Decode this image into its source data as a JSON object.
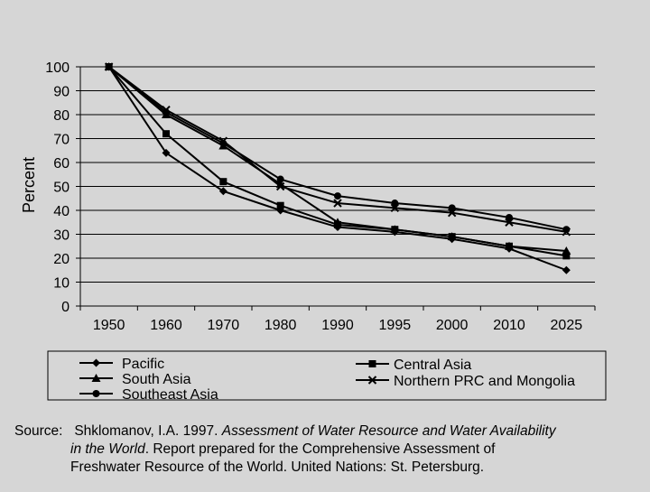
{
  "chart_data": {
    "type": "line",
    "ylabel": "Percent",
    "xlabel": "",
    "categories": [
      "1950",
      "1960",
      "1970",
      "1980",
      "1990",
      "1995",
      "2000",
      "2010",
      "2025"
    ],
    "ylim": [
      0,
      100
    ],
    "yticks": [
      0,
      10,
      20,
      30,
      40,
      50,
      60,
      70,
      80,
      90,
      100
    ],
    "grid": true,
    "legend_position": "bottom",
    "series": [
      {
        "name": "Pacific",
        "marker": "diamond",
        "values": [
          100,
          64,
          48,
          40,
          33,
          31,
          28,
          24,
          15
        ]
      },
      {
        "name": "South Asia",
        "marker": "triangle",
        "values": [
          100,
          80,
          67,
          51,
          35,
          32,
          29,
          25,
          23
        ]
      },
      {
        "name": "Southeast Asia",
        "marker": "circle",
        "values": [
          100,
          81,
          68,
          53,
          46,
          43,
          41,
          37,
          32
        ]
      },
      {
        "name": "Central Asia",
        "marker": "square",
        "values": [
          100,
          72,
          52,
          42,
          34,
          32,
          29,
          25,
          21
        ]
      },
      {
        "name": "Northern PRC and Mongolia",
        "marker": "x",
        "values": [
          100,
          82,
          69,
          50,
          43,
          41,
          39,
          35,
          31
        ]
      }
    ]
  },
  "source": {
    "label": "Source:",
    "author": "Shklomanov, I.A. 1997.",
    "title_line1": "Assessment of Water Resource and Water Availability",
    "title_line2": "in the World",
    "rest_line2": ". Report prepared for the Comprehensive Assessment of",
    "line3": "Freshwater Resource of the World. United Nations: St. Petersburg."
  }
}
